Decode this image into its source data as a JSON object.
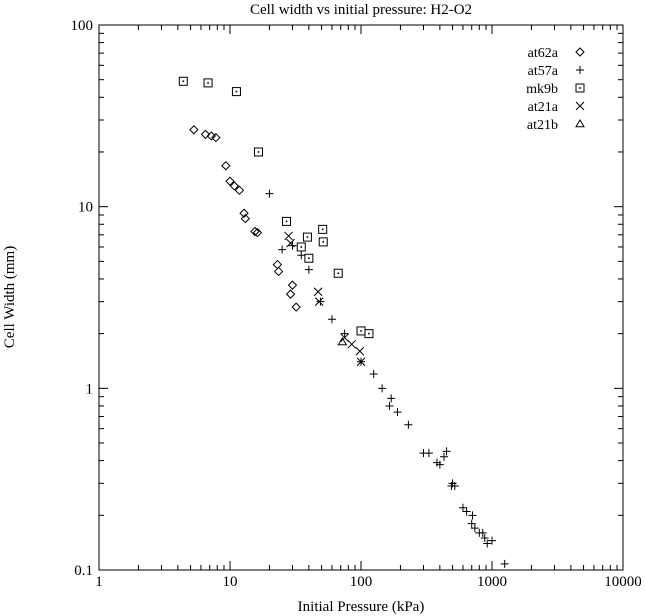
{
  "chart_data": {
    "type": "scatter",
    "title": "Cell width vs initial pressure: H2-O2",
    "xlabel": "Initial Pressure (kPa)",
    "ylabel": "Cell Width (mm)",
    "xscale": "log",
    "yscale": "log",
    "xlim": [
      1,
      10000
    ],
    "ylim": [
      0.1,
      100
    ],
    "x_ticks": [
      1,
      10,
      100,
      1000,
      10000
    ],
    "x_tick_labels": [
      "1",
      "10",
      "100",
      "1000",
      "10000"
    ],
    "y_ticks": [
      0.1,
      1,
      10,
      100
    ],
    "y_tick_labels": [
      "0.1",
      "1",
      "10",
      "100"
    ],
    "grid": false,
    "legend_position": "top-right",
    "series": [
      {
        "name": "at62a",
        "marker": "diamond",
        "points": [
          [
            5.3,
            26.5
          ],
          [
            6.5,
            25.0
          ],
          [
            7.2,
            24.5
          ],
          [
            7.8,
            24.0
          ],
          [
            9.3,
            16.8
          ],
          [
            10.0,
            13.8
          ],
          [
            10.8,
            13.0
          ],
          [
            11.8,
            12.3
          ],
          [
            12.8,
            9.2
          ],
          [
            13.1,
            8.6
          ],
          [
            15.5,
            7.3
          ],
          [
            16.2,
            7.2
          ],
          [
            23.0,
            4.8
          ],
          [
            23.5,
            4.4
          ],
          [
            29.0,
            3.3
          ],
          [
            30.0,
            3.7
          ],
          [
            32.0,
            2.8
          ]
        ]
      },
      {
        "name": "at57a",
        "marker": "plus",
        "points": [
          [
            20.0,
            11.8
          ],
          [
            25.0,
            5.8
          ],
          [
            30.0,
            6.1
          ],
          [
            35.0,
            5.4
          ],
          [
            40.0,
            4.5
          ],
          [
            49.0,
            3.0
          ],
          [
            60.0,
            2.4
          ],
          [
            75.0,
            2.0
          ],
          [
            100.0,
            1.4
          ],
          [
            125.0,
            1.2
          ],
          [
            145.0,
            1.0
          ],
          [
            165.0,
            0.8
          ],
          [
            170.0,
            0.88
          ],
          [
            190.0,
            0.74
          ],
          [
            230.0,
            0.63
          ],
          [
            300.0,
            0.44
          ],
          [
            330.0,
            0.44
          ],
          [
            380.0,
            0.39
          ],
          [
            400.0,
            0.38
          ],
          [
            430.0,
            0.42
          ],
          [
            450.0,
            0.45
          ],
          [
            490.0,
            0.29
          ],
          [
            500.0,
            0.3
          ],
          [
            520.0,
            0.29
          ],
          [
            600.0,
            0.22
          ],
          [
            640.0,
            0.21
          ],
          [
            700.0,
            0.18
          ],
          [
            710.0,
            0.2
          ],
          [
            740.0,
            0.17
          ],
          [
            800.0,
            0.16
          ],
          [
            850.0,
            0.16
          ],
          [
            880.0,
            0.15
          ],
          [
            920.0,
            0.14
          ],
          [
            1000.0,
            0.145
          ],
          [
            1250.0,
            0.108
          ]
        ]
      },
      {
        "name": "mk9b",
        "marker": "square-dot",
        "points": [
          [
            4.4,
            49.0
          ],
          [
            6.8,
            48.0
          ],
          [
            11.2,
            43.0
          ],
          [
            16.5,
            20.0
          ],
          [
            27.0,
            8.3
          ],
          [
            35.0,
            6.0
          ],
          [
            39.0,
            6.8
          ],
          [
            40.0,
            5.2
          ],
          [
            51.0,
            7.5
          ],
          [
            51.5,
            6.4
          ],
          [
            67.0,
            4.3
          ],
          [
            100.0,
            2.07
          ],
          [
            115.0,
            2.0
          ]
        ]
      },
      {
        "name": "at21a",
        "marker": "cross",
        "points": [
          [
            28.0,
            6.9
          ],
          [
            29.0,
            6.3
          ],
          [
            47.0,
            3.4
          ],
          [
            48.0,
            3.0
          ],
          [
            75.0,
            1.9
          ],
          [
            85.0,
            1.75
          ],
          [
            98.0,
            1.6
          ],
          [
            100.0,
            1.4
          ]
        ]
      },
      {
        "name": "at21b",
        "marker": "triangle",
        "points": [
          [
            72.0,
            1.8
          ]
        ]
      }
    ]
  }
}
